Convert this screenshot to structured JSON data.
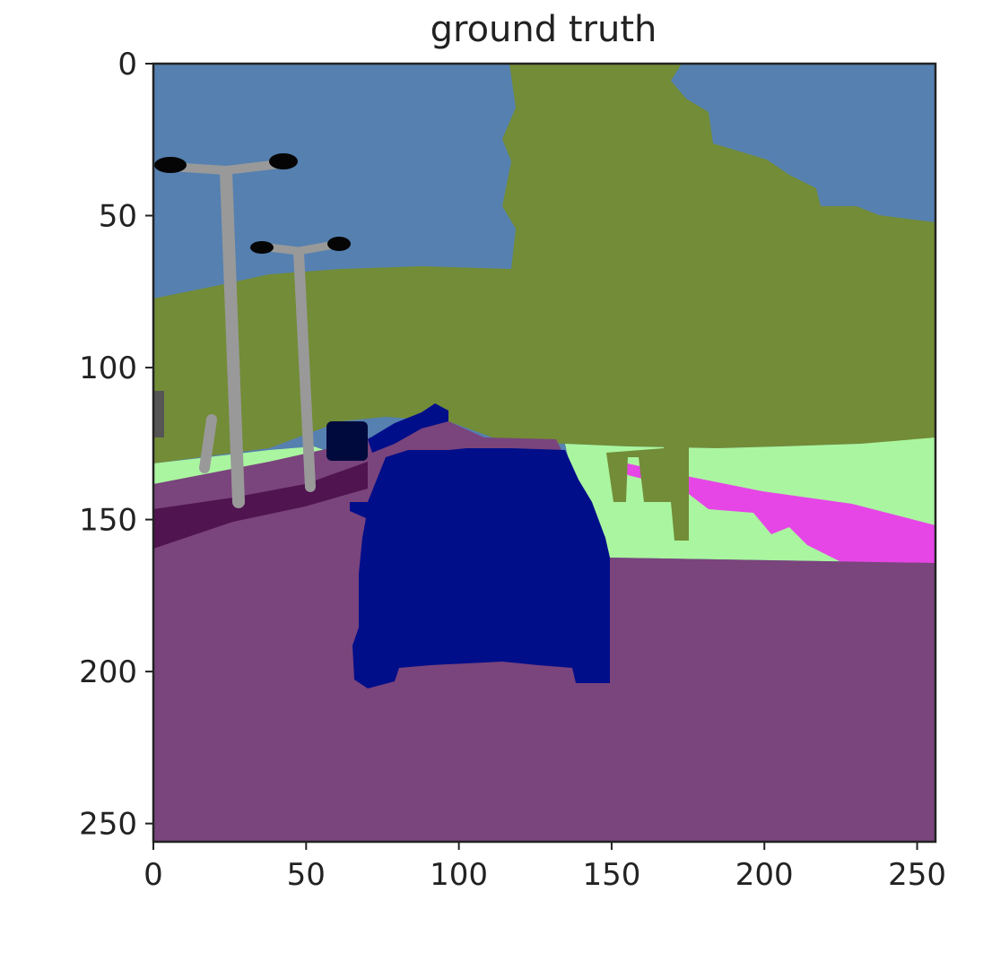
{
  "chart_data": {
    "type": "heatmap",
    "title": "ground truth",
    "xlabel": "",
    "ylabel": "",
    "xlim": [
      0,
      256
    ],
    "ylim": [
      256,
      0
    ],
    "x_ticks": [
      0,
      50,
      100,
      150,
      200,
      250
    ],
    "y_ticks": [
      0,
      50,
      100,
      150,
      200,
      250
    ],
    "x_tick_labels": [
      "0",
      "50",
      "100",
      "150",
      "200",
      "250"
    ],
    "y_tick_labels": [
      "0",
      "50",
      "100",
      "150",
      "200",
      "250"
    ],
    "grid": false,
    "image": "semantic segmentation label map (256 x 256 pixels)",
    "classes": [
      {
        "class": "sky",
        "color": "#5580b0"
      },
      {
        "class": "vegetation",
        "color": "#738c37"
      },
      {
        "class": "road",
        "color": "#7a447c"
      },
      {
        "class": "sidewalk",
        "color": "#501450"
      },
      {
        "class": "terrain",
        "color": "#aaf5a0"
      },
      {
        "class": "parking",
        "color": "#e646e6"
      },
      {
        "class": "car",
        "color": "#000e8a"
      },
      {
        "class": "pole",
        "color": "#999999"
      },
      {
        "class": "traffic light",
        "color": "#050505"
      },
      {
        "class": "truck",
        "color": "#000a3c"
      },
      {
        "class": "wall",
        "color": "#555555"
      }
    ]
  }
}
